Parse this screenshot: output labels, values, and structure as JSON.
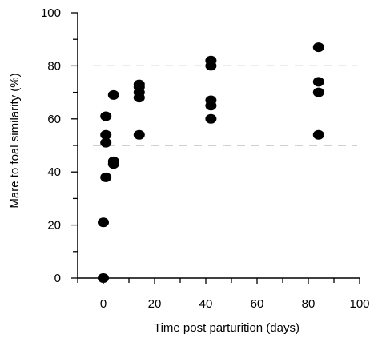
{
  "chart_data": {
    "type": "scatter",
    "xlabel": "Time post parturition (days)",
    "ylabel": "Mare to foal similarity (%)",
    "xlim": [
      -10,
      100
    ],
    "ylim": [
      0,
      100
    ],
    "x_ticks": [
      0,
      20,
      40,
      60,
      80,
      100
    ],
    "x_tick_labels": [
      "0",
      "20",
      "40",
      "60",
      "80",
      "100"
    ],
    "y_ticks": [
      0,
      20,
      40,
      60,
      80,
      100
    ],
    "y_tick_labels": [
      "0",
      "20",
      "40",
      "60",
      "80",
      "100"
    ],
    "reference_lines_y": [
      50,
      80
    ],
    "grid": false,
    "marker_color": "#000000",
    "reference_line_color": "#b5b5b5",
    "points": [
      {
        "x": 0,
        "y": 0
      },
      {
        "x": 0,
        "y": 21
      },
      {
        "x": 1,
        "y": 38
      },
      {
        "x": 1,
        "y": 51
      },
      {
        "x": 1,
        "y": 54
      },
      {
        "x": 1,
        "y": 61
      },
      {
        "x": 4,
        "y": 43
      },
      {
        "x": 4,
        "y": 44
      },
      {
        "x": 4,
        "y": 69
      },
      {
        "x": 14,
        "y": 54
      },
      {
        "x": 14,
        "y": 68
      },
      {
        "x": 14,
        "y": 70
      },
      {
        "x": 14,
        "y": 72
      },
      {
        "x": 14,
        "y": 73
      },
      {
        "x": 42,
        "y": 60
      },
      {
        "x": 42,
        "y": 65
      },
      {
        "x": 42,
        "y": 67
      },
      {
        "x": 42,
        "y": 80
      },
      {
        "x": 42,
        "y": 82
      },
      {
        "x": 84,
        "y": 54
      },
      {
        "x": 84,
        "y": 70
      },
      {
        "x": 84,
        "y": 74
      },
      {
        "x": 84,
        "y": 87
      }
    ]
  }
}
